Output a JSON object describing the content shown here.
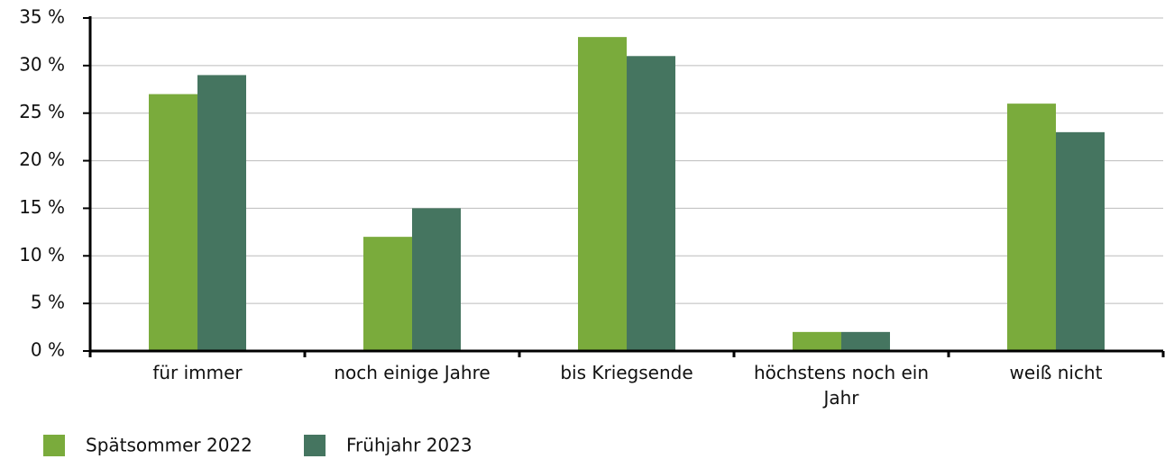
{
  "chart_data": {
    "type": "bar",
    "categories": [
      "für immer",
      "noch einige Jahre",
      "bis Kriegsende",
      "höchstens noch ein Jahr",
      "weiß nicht"
    ],
    "series": [
      {
        "name": "Spätsommer 2022",
        "color": "#7aab3c",
        "values": [
          27,
          12,
          33,
          2,
          26
        ]
      },
      {
        "name": "Frühjahr 2023",
        "color": "#457560",
        "values": [
          29,
          15,
          31,
          2,
          23
        ]
      }
    ],
    "ylim": [
      0,
      35
    ],
    "yticks": [
      {
        "value": 0,
        "label": "0 %"
      },
      {
        "value": 5,
        "label": "5 %"
      },
      {
        "value": 10,
        "label": "10 %"
      },
      {
        "value": 15,
        "label": "15 %"
      },
      {
        "value": 20,
        "label": "20 %"
      },
      {
        "value": 25,
        "label": "25 %"
      },
      {
        "value": 30,
        "label": "30 %"
      },
      {
        "value": 35,
        "label": "35 %"
      }
    ],
    "grid": true
  }
}
